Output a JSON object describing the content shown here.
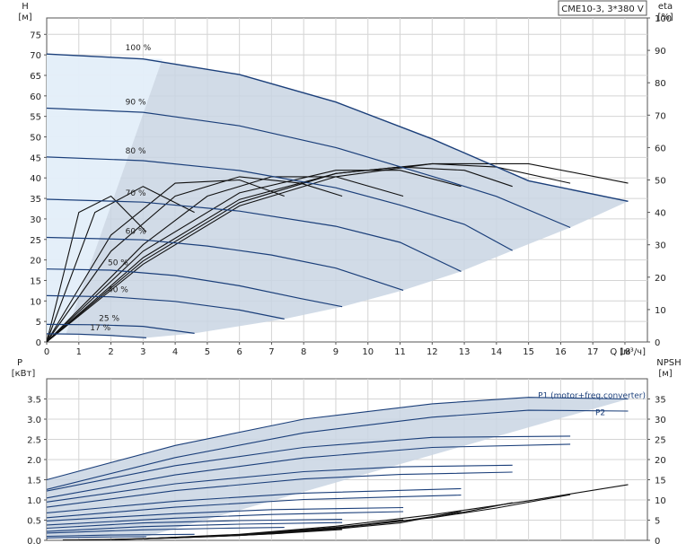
{
  "chart_data": [
    {
      "type": "line",
      "title": "CME10-3, 3*380 V",
      "xlabel": "Q [м³/ч]",
      "ylabel": "H",
      "ylabel_unit": "[м]",
      "y2label": "eta",
      "y2label_unit": "[%]",
      "xlim": [
        0,
        18.7
      ],
      "ylim": [
        0,
        79
      ],
      "y2lim": [
        0,
        100
      ],
      "xticks": [
        0,
        1,
        2,
        3,
        4,
        5,
        6,
        7,
        8,
        9,
        10,
        11,
        12,
        13,
        14,
        15,
        16,
        17,
        18
      ],
      "yticks": [
        0,
        5,
        10,
        15,
        20,
        25,
        30,
        35,
        40,
        45,
        50,
        55,
        60,
        65,
        70,
        75
      ],
      "y2ticks": [
        0,
        10,
        20,
        30,
        40,
        50,
        60,
        70,
        80,
        90,
        100
      ],
      "grid": true,
      "operating_area_color": "#c9d5e3",
      "curve_color": "#1b3f7a",
      "eta_color": "#111111",
      "series": [
        {
          "name": "100 %",
          "x": [
            0,
            3,
            6,
            9,
            12,
            15,
            18.1
          ],
          "y": [
            70.2,
            69.0,
            65.2,
            58.5,
            49.5,
            39.3,
            34.3
          ]
        },
        {
          "name": "90 %",
          "x": [
            0,
            3,
            6,
            9,
            12,
            14,
            16.3
          ],
          "y": [
            57.0,
            56.0,
            52.7,
            47.4,
            40.4,
            35.5,
            27.9
          ]
        },
        {
          "name": "80 %",
          "x": [
            0,
            3,
            6,
            9,
            11,
            13,
            14.5
          ],
          "y": [
            45.1,
            44.2,
            41.8,
            37.6,
            33.4,
            28.7,
            22.3
          ]
        },
        {
          "name": "70 %",
          "x": [
            0,
            3,
            6,
            9,
            11,
            12.9
          ],
          "y": [
            34.8,
            34.1,
            31.9,
            28.2,
            24.3,
            17.2
          ]
        },
        {
          "name": "60 %",
          "x": [
            0,
            3,
            5,
            7,
            9,
            11.1
          ],
          "y": [
            25.5,
            24.9,
            23.4,
            21.2,
            18.0,
            12.6
          ]
        },
        {
          "name": "50 %",
          "x": [
            0,
            2,
            4,
            6,
            7.9,
            9.2
          ],
          "y": [
            17.8,
            17.5,
            16.2,
            13.7,
            10.6,
            8.6
          ]
        },
        {
          "name": "40 %",
          "x": [
            0,
            2,
            4,
            6,
            7.4
          ],
          "y": [
            11.3,
            11.0,
            9.9,
            7.8,
            5.6
          ]
        },
        {
          "name": "25 %",
          "x": [
            0,
            1.5,
            3,
            4.6
          ],
          "y": [
            4.3,
            4.2,
            3.8,
            2.1
          ]
        },
        {
          "name": "17 %",
          "x": [
            0,
            1,
            2,
            3.1
          ],
          "y": [
            2.0,
            1.9,
            1.6,
            1.0
          ]
        }
      ],
      "eta_series": [
        {
          "x": [
            0,
            3,
            6,
            9,
            12,
            15,
            18.1
          ],
          "y": [
            0,
            24,
            42,
            51,
            55,
            55,
            49
          ]
        },
        {
          "x": [
            0,
            3,
            6,
            9,
            12,
            14,
            16.3
          ],
          "y": [
            0,
            25,
            43,
            52,
            55,
            54,
            49
          ]
        },
        {
          "x": [
            0,
            3,
            6,
            9,
            11,
            13,
            14.5
          ],
          "y": [
            0,
            26,
            44,
            52,
            54,
            53,
            48
          ]
        },
        {
          "x": [
            0,
            3,
            6,
            9,
            11,
            12.9
          ],
          "y": [
            0,
            28,
            46,
            53,
            53,
            48
          ]
        },
        {
          "x": [
            0,
            3,
            5,
            7,
            9,
            11.1
          ],
          "y": [
            0,
            30,
            45,
            51,
            51,
            45
          ]
        },
        {
          "x": [
            0,
            2,
            4,
            6,
            7.9,
            9.2
          ],
          "y": [
            0,
            28,
            45,
            51,
            49,
            45
          ]
        },
        {
          "x": [
            0,
            2,
            4,
            6,
            7.4
          ],
          "y": [
            0,
            33,
            49,
            50,
            45
          ]
        },
        {
          "x": [
            0,
            1.5,
            3,
            4.6
          ],
          "y": [
            0,
            40,
            48,
            40
          ]
        },
        {
          "x": [
            0,
            1,
            2,
            3.1
          ],
          "y": [
            0,
            40,
            45,
            34
          ]
        }
      ]
    },
    {
      "type": "line",
      "title": "",
      "xlabel": "",
      "ylabel": "P",
      "ylabel_unit": "[кВт]",
      "y2label": "NPSH",
      "y2label_unit": "[м]",
      "xlim": [
        0,
        18.7
      ],
      "ylim": [
        0,
        4.0
      ],
      "y2lim": [
        0,
        40
      ],
      "yticks": [
        0,
        0.5,
        1.0,
        1.5,
        2.0,
        2.5,
        3.0,
        3.5
      ],
      "ytick_labels": [
        "0.0",
        "0.5",
        "1.0",
        "1.5",
        "2.0",
        "2.5",
        "3.0",
        "3.5"
      ],
      "y2ticks": [
        0,
        5,
        10,
        15,
        20,
        25,
        30,
        35
      ],
      "grid": true,
      "p1_label": "P1 (motor+freq.converter)",
      "p2_label": "P2",
      "power_series": [
        {
          "role": "P1",
          "x": [
            0,
            4,
            8,
            12,
            15,
            18.1
          ],
          "y": [
            1.5,
            2.35,
            3.0,
            3.38,
            3.54,
            3.5
          ]
        },
        {
          "role": "P2",
          "x": [
            0,
            4,
            8,
            12,
            15,
            18.1
          ],
          "y": [
            1.26,
            2.05,
            2.66,
            3.05,
            3.22,
            3.2
          ]
        },
        {
          "x": [
            0,
            4,
            8,
            12,
            16.3
          ],
          "y": [
            1.22,
            1.85,
            2.3,
            2.55,
            2.58
          ]
        },
        {
          "x": [
            0,
            4,
            8,
            12,
            16.3
          ],
          "y": [
            1.05,
            1.62,
            2.04,
            2.3,
            2.38
          ]
        },
        {
          "x": [
            0,
            4,
            8,
            11,
            14.5
          ],
          "y": [
            0.95,
            1.4,
            1.7,
            1.82,
            1.86
          ]
        },
        {
          "x": [
            0,
            4,
            8,
            11,
            14.5
          ],
          "y": [
            0.82,
            1.23,
            1.52,
            1.63,
            1.69
          ]
        },
        {
          "x": [
            0,
            4,
            8,
            12.9
          ],
          "y": [
            0.68,
            0.97,
            1.17,
            1.28
          ]
        },
        {
          "x": [
            0,
            4,
            8,
            12.9
          ],
          "y": [
            0.56,
            0.82,
            1.01,
            1.12
          ]
        },
        {
          "x": [
            0,
            4,
            7,
            11.1
          ],
          "y": [
            0.48,
            0.66,
            0.76,
            0.81
          ]
        },
        {
          "x": [
            0,
            4,
            7,
            11.1
          ],
          "y": [
            0.38,
            0.55,
            0.64,
            0.71
          ]
        },
        {
          "x": [
            0,
            3,
            6,
            9.2
          ],
          "y": [
            0.3,
            0.43,
            0.49,
            0.52
          ]
        },
        {
          "x": [
            0,
            3,
            6,
            9.2
          ],
          "y": [
            0.22,
            0.34,
            0.4,
            0.44
          ]
        },
        {
          "x": [
            0,
            3,
            5.5,
            7.4
          ],
          "y": [
            0.18,
            0.26,
            0.3,
            0.32
          ]
        },
        {
          "x": [
            0,
            2,
            4.6
          ],
          "y": [
            0.1,
            0.13,
            0.15
          ]
        },
        {
          "x": [
            0,
            1.5,
            3.1
          ],
          "y": [
            0.06,
            0.08,
            0.09
          ]
        }
      ],
      "npsh_series": [
        {
          "x": [
            3,
            6,
            9,
            12,
            15,
            18.1
          ],
          "y": [
            0.4,
            1.5,
            3.5,
            6.3,
            9.8,
            13.8
          ]
        },
        {
          "x": [
            3,
            6,
            9,
            12,
            14,
            16.3
          ],
          "y": [
            0.4,
            1.4,
            3.2,
            5.6,
            8.0,
            11.3
          ]
        },
        {
          "x": [
            3,
            6,
            9,
            11,
            13,
            14.5
          ],
          "y": [
            0.4,
            1.3,
            3.0,
            4.7,
            7.0,
            9.3
          ]
        },
        {
          "x": [
            3,
            6,
            9,
            11,
            12.9
          ],
          "y": [
            0.4,
            1.2,
            2.8,
            4.3,
            7.2
          ]
        },
        {
          "x": [
            3,
            5,
            7,
            9,
            11.1
          ],
          "y": [
            0.4,
            1.0,
            1.8,
            3.0,
            5.1
          ]
        },
        {
          "x": [
            3,
            5,
            7,
            9.2
          ],
          "y": [
            0.4,
            0.9,
            1.6,
            2.7
          ]
        },
        {
          "x": [
            2,
            4,
            6,
            7.4
          ],
          "y": [
            0.2,
            0.6,
            1.2,
            1.8
          ]
        },
        {
          "x": [
            1,
            3,
            4.6
          ],
          "y": [
            0.1,
            0.4,
            0.8
          ]
        },
        {
          "x": [
            0.5,
            2,
            3.1
          ],
          "y": [
            0.1,
            0.2,
            0.4
          ]
        }
      ]
    }
  ]
}
